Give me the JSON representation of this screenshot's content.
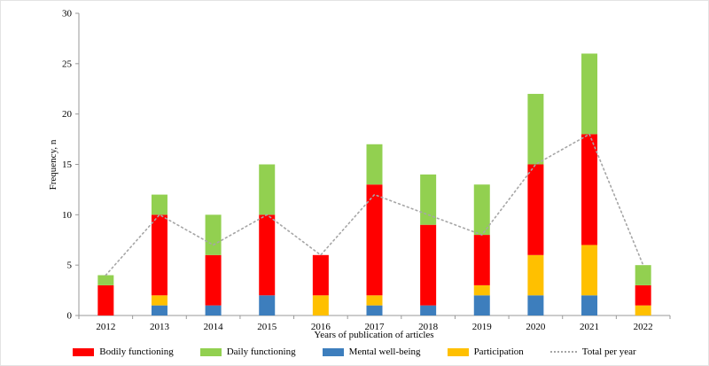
{
  "chart_data": {
    "type": "bar",
    "stacked": true,
    "title": "",
    "xlabel": "Years of publication of articles",
    "ylabel": "Frequency, n",
    "ylim": [
      0,
      30
    ],
    "ytick_step": 5,
    "grid": false,
    "legend_position": "bottom",
    "categories": [
      "2012",
      "2013",
      "2014",
      "2015",
      "2016",
      "2017",
      "2018",
      "2019",
      "2020",
      "2021",
      "2022"
    ],
    "series": [
      {
        "name": "Mental well-being",
        "color": "#3d7ebd",
        "values": [
          0,
          1,
          1,
          2,
          0,
          1,
          1,
          2,
          2,
          2,
          0
        ]
      },
      {
        "name": "Participation",
        "color": "#ffc000",
        "values": [
          0,
          1,
          0,
          0,
          2,
          1,
          0,
          1,
          4,
          5,
          1
        ]
      },
      {
        "name": "Bodily functioning",
        "color": "#ff0000",
        "values": [
          3,
          8,
          5,
          8,
          4,
          11,
          8,
          5,
          9,
          11,
          2
        ]
      },
      {
        "name": "Daily functioning",
        "color": "#92d050",
        "values": [
          1,
          2,
          4,
          5,
          0,
          4,
          5,
          5,
          7,
          8,
          2
        ]
      }
    ],
    "bar_totals": [
      4,
      12,
      10,
      15,
      6,
      17,
      14,
      13,
      22,
      26,
      5
    ],
    "line_series": {
      "name": "Total per year",
      "color": "#a6a6a6",
      "style": "dotted",
      "values": [
        4,
        10,
        7,
        10,
        6,
        12,
        10,
        8,
        15,
        18,
        5
      ]
    },
    "legend_items": [
      {
        "label": "Bodily functioning",
        "color": "#ff0000",
        "type": "box"
      },
      {
        "label": "Daily functioning",
        "color": "#92d050",
        "type": "box"
      },
      {
        "label": "Mental well-being",
        "color": "#3d7ebd",
        "type": "box"
      },
      {
        "label": "Participation",
        "color": "#ffc000",
        "type": "box"
      },
      {
        "label": "Total per year",
        "color": "#a6a6a6",
        "type": "line"
      }
    ],
    "axis_color": "#9a9a9a"
  }
}
